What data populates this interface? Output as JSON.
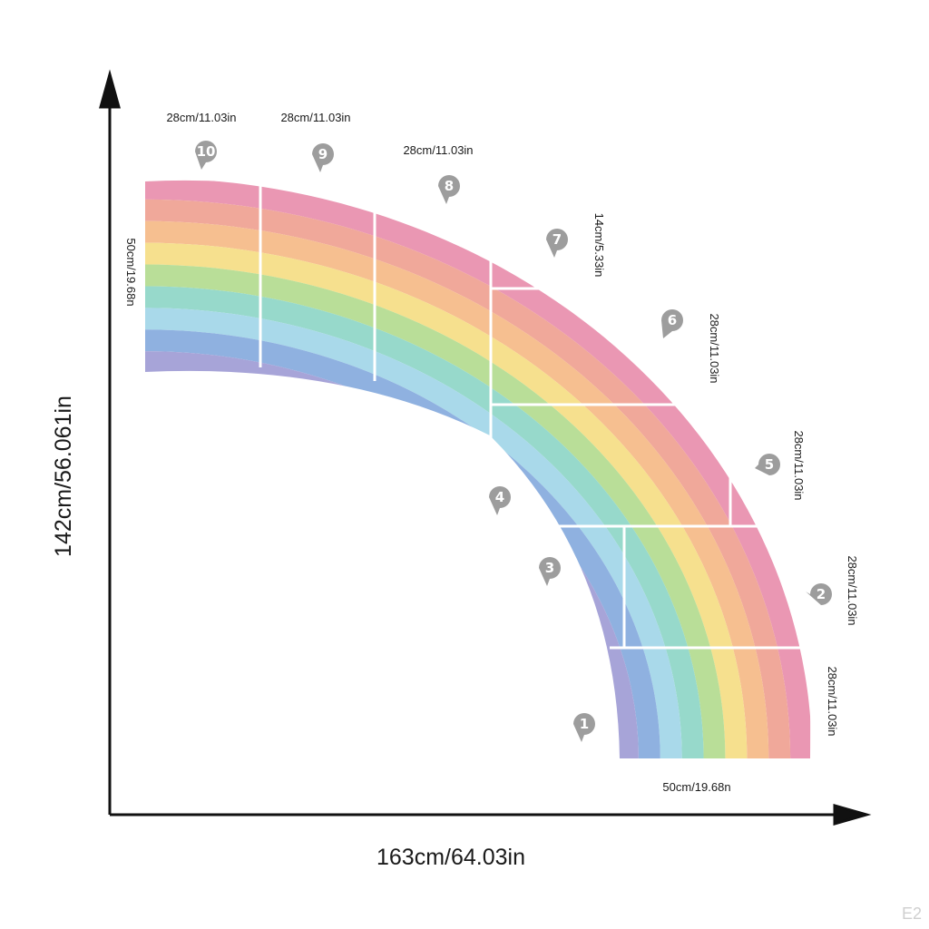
{
  "dimensions": {
    "total_height": "142cm/56.061in",
    "total_width": "163cm/64.03in",
    "band_width_top": "50cm/19.68n",
    "band_width_bottom": "50cm/19.68n"
  },
  "pieces": [
    {
      "number": "1",
      "size": "28cm/11.03in"
    },
    {
      "number": "2",
      "size": "28cm/11.03in"
    },
    {
      "number": "3",
      "size": ""
    },
    {
      "number": "4",
      "size": ""
    },
    {
      "number": "5",
      "size": "28cm/11.03in"
    },
    {
      "number": "6",
      "size": "28cm/11.03in"
    },
    {
      "number": "7",
      "size": "14cm/5.33in"
    },
    {
      "number": "8",
      "size": "28cm/11.03in"
    },
    {
      "number": "9",
      "size": "28cm/11.03in"
    },
    {
      "number": "10",
      "size": "28cm/11.03in"
    }
  ],
  "rainbow_colors": [
    "#ea97b3",
    "#f0a89a",
    "#f6bf90",
    "#f6e08e",
    "#b9de98",
    "#97d9cb",
    "#a9d9ea",
    "#8fb1e0",
    "#a7a4d8"
  ],
  "watermark": "E2"
}
